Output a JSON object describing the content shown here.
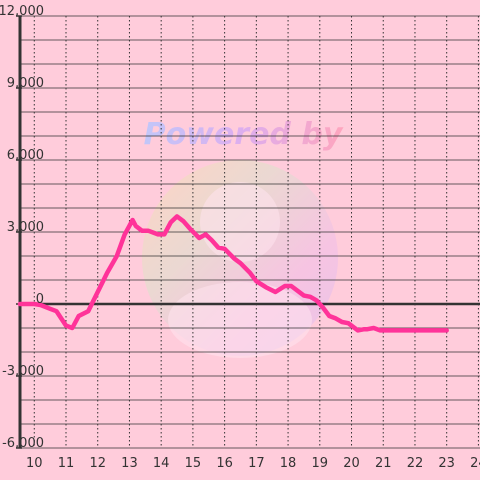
{
  "chart_data": {
    "type": "line",
    "title": "",
    "xlabel": "",
    "ylabel": "",
    "xlim": [
      9.55,
      24.05
    ],
    "ylim": [
      -6000,
      12000
    ],
    "x_ticks": [
      10,
      11,
      12,
      13,
      14,
      15,
      16,
      17,
      18,
      19,
      20,
      21,
      22,
      23,
      24
    ],
    "x_tick_labels": [
      "10",
      "11",
      "12",
      "13",
      "14",
      "15",
      "16",
      "17",
      "18",
      "19",
      "20",
      "21",
      "22",
      "23",
      "24"
    ],
    "y_ticks": [
      -6000,
      -3000,
      0,
      3000,
      6000,
      9000,
      12000
    ],
    "y_tick_labels": [
      "-6,000",
      "-3,000",
      "0",
      "3,000",
      "6,000",
      "9,000",
      "12,000"
    ],
    "grid": true,
    "legend": "none",
    "colors": {
      "background": "#ffccdb",
      "line": "#ff3399",
      "axis": "#333333",
      "grid": "#333333"
    },
    "series": [
      {
        "name": "",
        "x": [
          9.55,
          10.0,
          10.2,
          10.5,
          10.7,
          11.0,
          11.2,
          11.4,
          11.7,
          12.0,
          12.3,
          12.6,
          12.85,
          13.1,
          13.2,
          13.4,
          13.6,
          13.9,
          14.1,
          14.3,
          14.5,
          14.7,
          14.9,
          15.2,
          15.4,
          15.6,
          15.8,
          16.0,
          16.3,
          16.5,
          16.8,
          17.0,
          17.3,
          17.6,
          17.9,
          18.1,
          18.3,
          18.5,
          18.7,
          18.9,
          19.1,
          19.3,
          19.5,
          19.7,
          19.9,
          20.2,
          20.4,
          20.5,
          20.7,
          20.9,
          21.2,
          21.5,
          21.8,
          22.0,
          22.5,
          23.0
        ],
        "values": [
          0,
          0,
          -40,
          -200,
          -300,
          -900,
          -1000,
          -500,
          -300,
          500,
          1300,
          2000,
          2900,
          3500,
          3250,
          3050,
          3050,
          2900,
          2900,
          3400,
          3650,
          3450,
          3150,
          2750,
          2900,
          2650,
          2350,
          2300,
          1900,
          1700,
          1300,
          950,
          700,
          500,
          750,
          750,
          550,
          350,
          300,
          150,
          -150,
          -500,
          -600,
          -750,
          -800,
          -1100,
          -1050,
          -1050,
          -1000,
          -1100,
          -1100,
          -1100,
          -1100,
          -1100,
          -1100,
          -1100
        ]
      }
    ],
    "watermark": {
      "text": "Powered by"
    }
  }
}
